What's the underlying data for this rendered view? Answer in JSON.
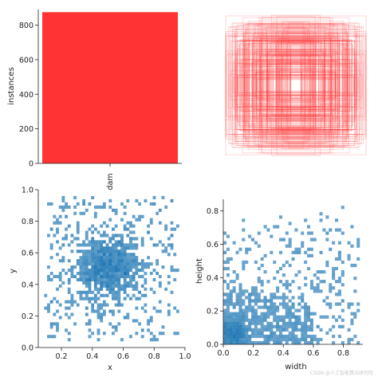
{
  "chart_data": [
    {
      "id": "class-count",
      "type": "bar",
      "categories": [
        "dam"
      ],
      "values": [
        875
      ],
      "ylabel": "instances",
      "ylim": [
        0,
        890
      ],
      "yticks": [
        0,
        200,
        400,
        600,
        800
      ],
      "color": "#ff3333"
    },
    {
      "id": "box-overlay",
      "type": "boxes",
      "description": "",
      "color": "#ff3333"
    },
    {
      "id": "xy-hist",
      "type": "heatmap",
      "xlabel": "x",
      "ylabel": "y",
      "xlim": [
        0.05,
        1.0
      ],
      "ylim": [
        0.0,
        1.0
      ],
      "xticks": [
        0.2,
        0.4,
        0.6,
        0.8,
        1.0
      ],
      "yticks": [
        0.0,
        0.2,
        0.4,
        0.6,
        0.8,
        1.0
      ],
      "color": "#1f77b4",
      "center": [
        0.5,
        0.5
      ],
      "peak_count": 10
    },
    {
      "id": "wh-hist",
      "type": "heatmap",
      "xlabel": "width",
      "ylabel": "height",
      "xlim": [
        0.0,
        0.93
      ],
      "ylim": [
        0.0,
        0.87
      ],
      "xticks": [
        0.0,
        0.2,
        0.4,
        0.6,
        0.8
      ],
      "yticks": [
        0.0,
        0.2,
        0.4,
        0.6,
        0.8
      ],
      "color": "#1f77b4",
      "peak": [
        0.07,
        0.07
      ],
      "peak_count": 12
    }
  ],
  "watermark": "CSDN @人工智能算法研究院"
}
